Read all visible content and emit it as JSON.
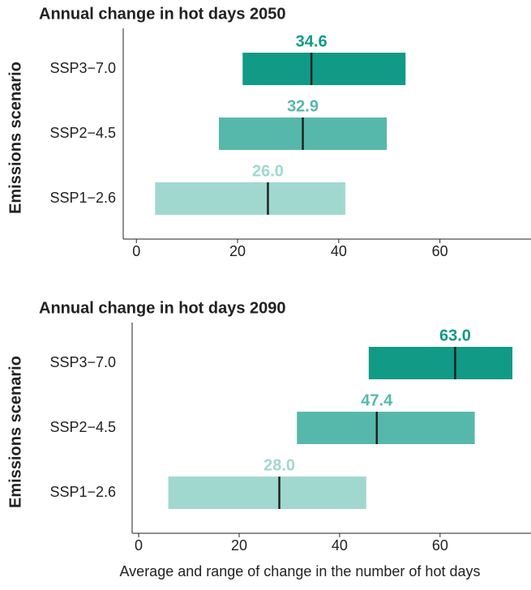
{
  "chart_data": [
    {
      "type": "range_bar",
      "title": "Annual change in hot days 2050",
      "ylabel": "Emissions scenario",
      "categories": [
        "SSP3−7.0",
        "SSP2−4.5",
        "SSP1−2.6"
      ],
      "colors": [
        "#119a85",
        "#56b8aa",
        "#a0d8d0"
      ],
      "low": [
        21.0,
        16.3,
        3.7
      ],
      "high": [
        53.2,
        49.5,
        41.3
      ],
      "values": [
        34.6,
        32.9,
        26.0
      ],
      "value_labels": [
        "34.6",
        "32.9",
        "26.0"
      ],
      "xlim": [
        -2.6,
        78
      ],
      "xticks": [
        0,
        20,
        40,
        60
      ]
    },
    {
      "type": "range_bar",
      "title": "Annual change in hot days 2090",
      "ylabel": "Emissions scenario",
      "xlabel": "Average and range of change in the number of hot days",
      "categories": [
        "SSP3−7.0",
        "SSP2−4.5",
        "SSP1−2.6"
      ],
      "colors": [
        "#119a85",
        "#56b8aa",
        "#a0d8d0"
      ],
      "low": [
        45.8,
        31.5,
        5.9
      ],
      "high": [
        74.4,
        66.9,
        45.3
      ],
      "values": [
        63.0,
        47.4,
        28.0
      ],
      "value_labels": [
        "63.0",
        "47.4",
        "28.0"
      ],
      "xlim": [
        -1.3,
        78.1
      ],
      "xticks": [
        0,
        20,
        40,
        60
      ]
    }
  ]
}
